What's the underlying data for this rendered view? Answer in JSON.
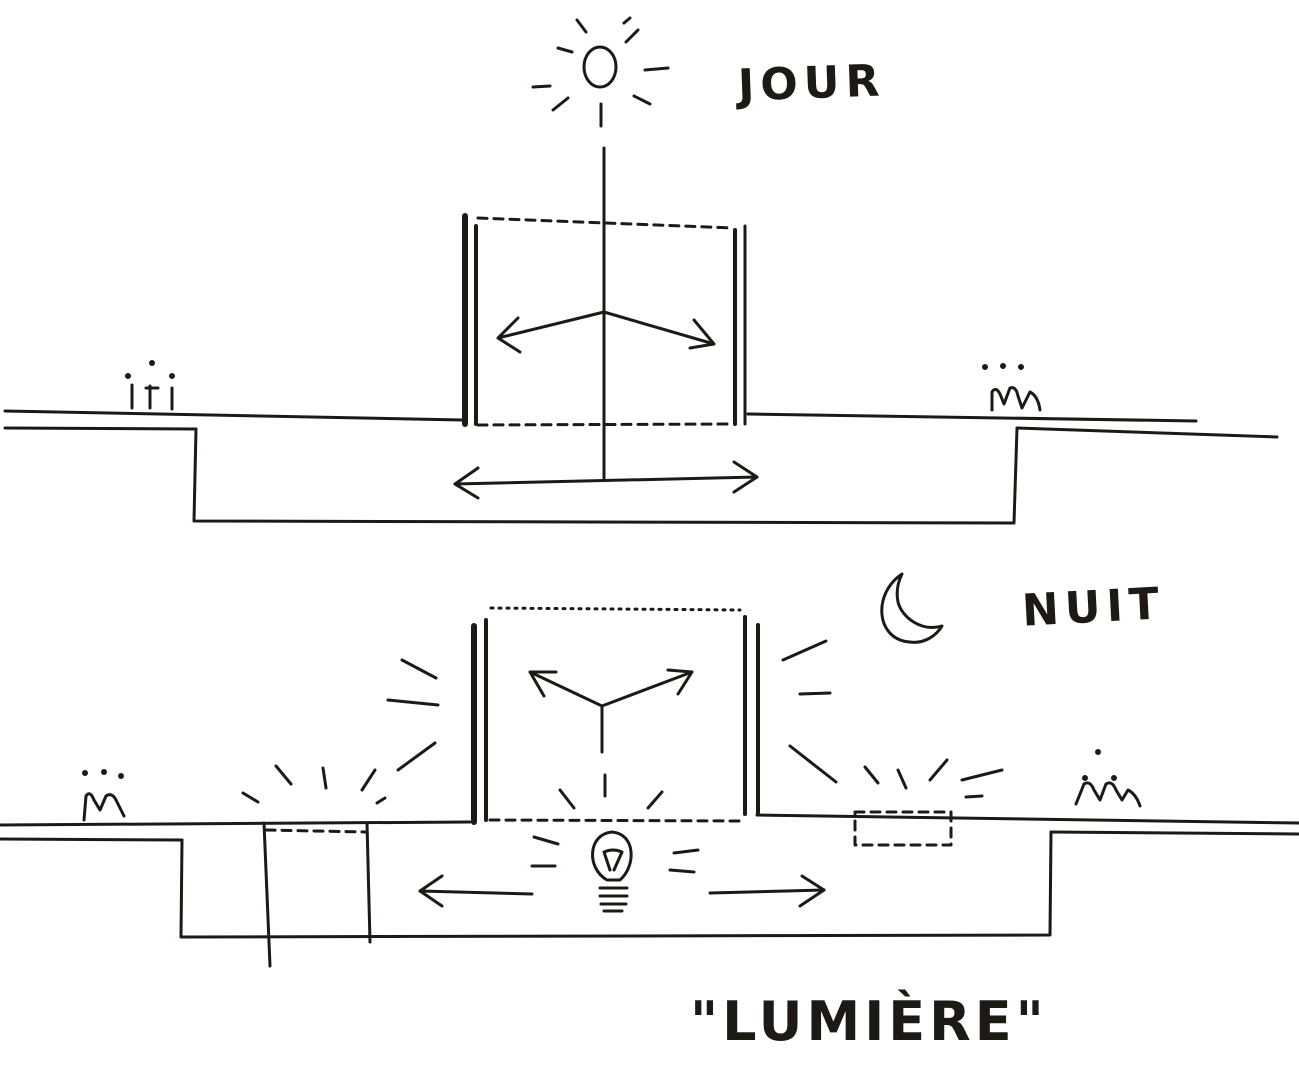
{
  "labels": {
    "day": "JOUR",
    "night": "NUIT",
    "title": "\"LUMIÈRE\""
  },
  "colors": {
    "ink": "#1d1a15",
    "paper": "#ffffff"
  },
  "icons": [
    "sun-icon",
    "moon-icon",
    "light-bulb-icon",
    "person-icon"
  ]
}
